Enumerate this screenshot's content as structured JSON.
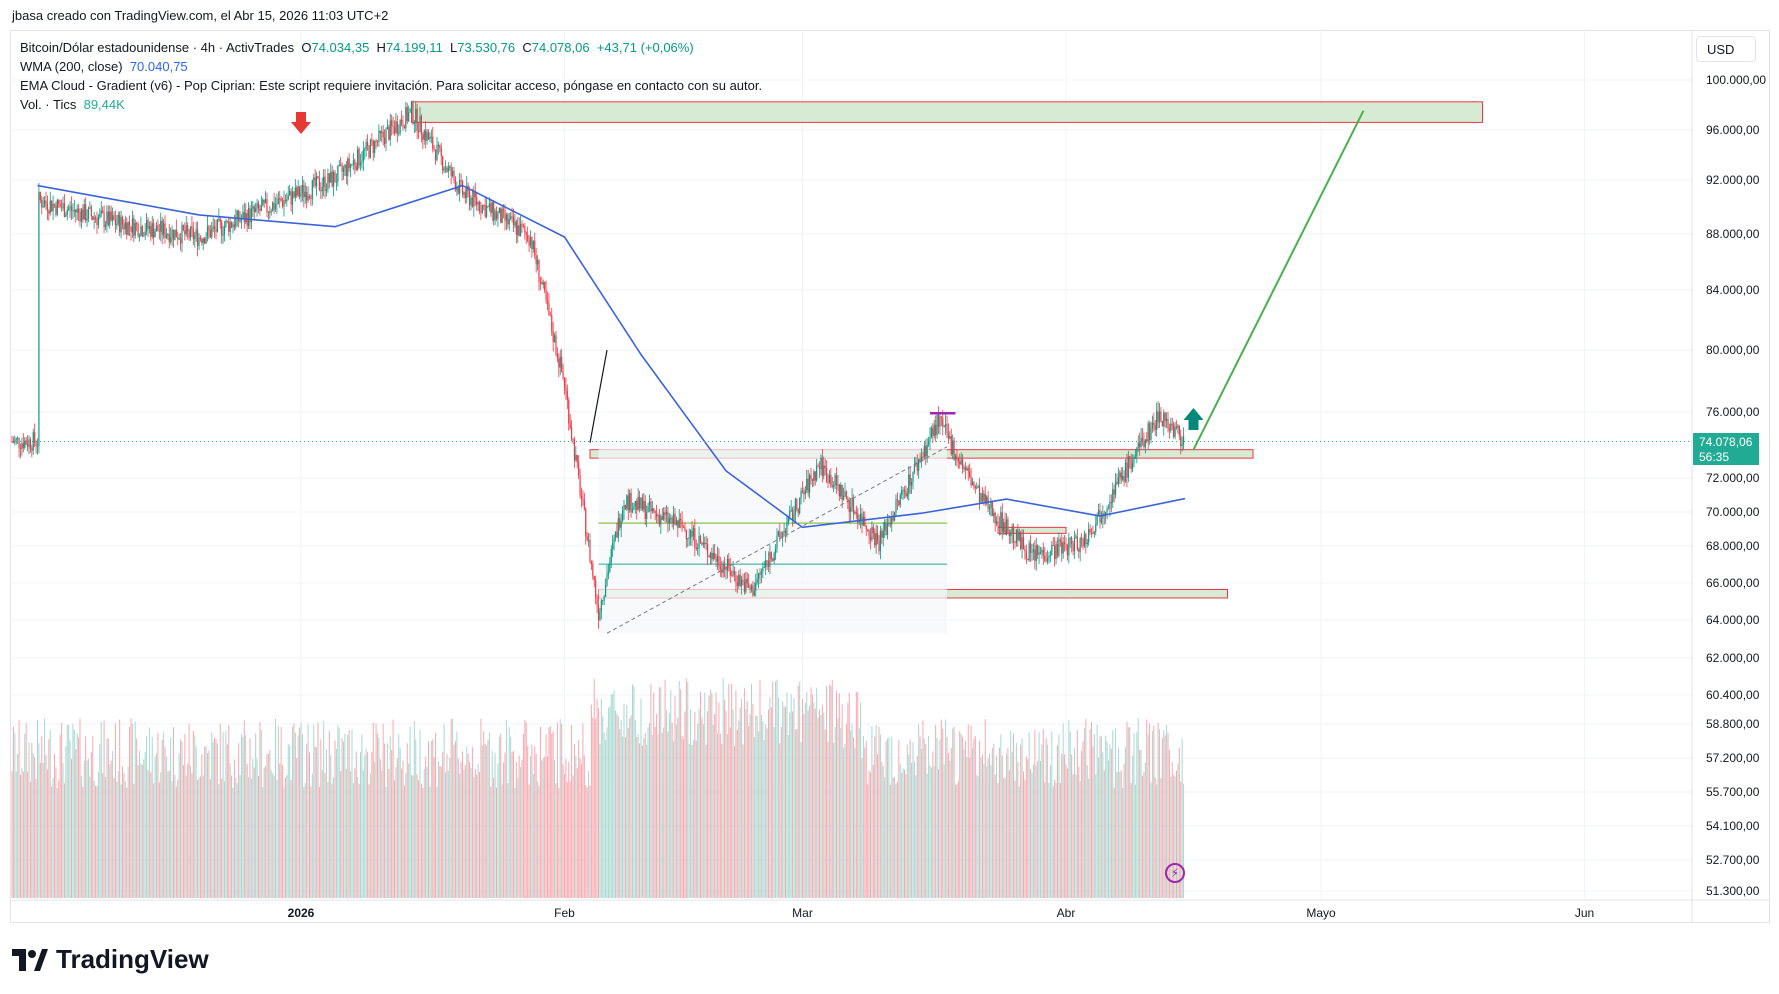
{
  "header": {
    "caption": "jbasa creado con TradingView.com, el Abr 15, 2026 11:03 UTC+2"
  },
  "legend": {
    "symbol": "Bitcoin/Dólar estadounidense · 4h · ActivTrades",
    "open_label": "O",
    "open": "74.034,35",
    "high_label": "H",
    "high": "74.199,11",
    "low_label": "L",
    "low": "73.530,76",
    "close_label": "C",
    "close": "74.078,06",
    "change": "+43,71 (+0,06%)",
    "wma_label": "WMA (200, close)",
    "wma_value": "70.040,75",
    "ema_cloud": "EMA Cloud - Gradient (v6) - Pop Ciprian: Este script requiere invitación. Para solicitar acceso, póngase en contacto con su autor.",
    "vol_label": "Vol. · Tics",
    "vol_value": "89,44K"
  },
  "currency_button": "USD",
  "last_price": {
    "value": "74.078,06",
    "countdown": "56:35"
  },
  "brand": "TradingView",
  "colors": {
    "up": "#089981",
    "down": "#f23645",
    "wma": "#3a63d9",
    "zone_fill": "#d7ead3",
    "zone_border": "#f23645",
    "projection": "#4caf50",
    "accent": "#22ab94"
  },
  "chart_data": {
    "type": "candlestick",
    "symbol": "BTCUSD",
    "timeframe": "4h",
    "y_axis_labels": [
      "100.000,00",
      "96.000,00",
      "92.000,00",
      "88.000,00",
      "84.000,00",
      "80.000,00",
      "76.000,00",
      "72.000,00",
      "70.000,00",
      "68.000,00",
      "66.000,00",
      "64.000,00",
      "62.000,00",
      "60.400,00",
      "58.800,00",
      "57.200,00",
      "55.700,00",
      "54.100,00",
      "52.700,00",
      "51.300,00"
    ],
    "x_axis_labels": [
      "2026",
      "Feb",
      "Mar",
      "Abr",
      "Mayo",
      "Jun"
    ],
    "price_path": [
      {
        "date": "2025-12-01",
        "price": 90500
      },
      {
        "date": "2025-12-10",
        "price": 89000
      },
      {
        "date": "2025-12-20",
        "price": 88000
      },
      {
        "date": "2026-01-05",
        "price": 92000
      },
      {
        "date": "2026-01-14",
        "price": 96500
      },
      {
        "date": "2026-01-20",
        "price": 91000
      },
      {
        "date": "2026-01-28",
        "price": 88000
      },
      {
        "date": "2026-02-01",
        "price": 78000
      },
      {
        "date": "2026-02-05",
        "price": 62000
      },
      {
        "date": "2026-02-08",
        "price": 70000
      },
      {
        "date": "2026-02-15",
        "price": 68000
      },
      {
        "date": "2026-02-23",
        "price": 63500
      },
      {
        "date": "2026-03-03",
        "price": 72500
      },
      {
        "date": "2026-03-10",
        "price": 67000
      },
      {
        "date": "2026-03-17",
        "price": 75500
      },
      {
        "date": "2026-03-22",
        "price": 70000
      },
      {
        "date": "2026-03-28",
        "price": 66000
      },
      {
        "date": "2026-04-03",
        "price": 67000
      },
      {
        "date": "2026-04-08",
        "price": 72000
      },
      {
        "date": "2026-04-12",
        "price": 76000
      },
      {
        "date": "2026-04-15",
        "price": 74078
      }
    ],
    "wma_path": [
      {
        "date": "2025-12-01",
        "value": 91500
      },
      {
        "date": "2025-12-20",
        "value": 89500
      },
      {
        "date": "2026-01-05",
        "value": 88700
      },
      {
        "date": "2026-01-20",
        "value": 91500
      },
      {
        "date": "2026-02-01",
        "value": 88000
      },
      {
        "date": "2026-02-10",
        "value": 80000
      },
      {
        "date": "2026-02-20",
        "value": 72000
      },
      {
        "date": "2026-03-01",
        "value": 68000
      },
      {
        "date": "2026-03-15",
        "value": 69000
      },
      {
        "date": "2026-03-25",
        "value": 70000
      },
      {
        "date": "2026-04-05",
        "value": 68800
      },
      {
        "date": "2026-04-15",
        "value": 70040
      }
    ],
    "zones": [
      {
        "name": "resistance",
        "from": "2026-01-14",
        "to": "2026-05-20",
        "low": 95800,
        "high": 97200
      },
      {
        "name": "breakout",
        "from": "2026-02-04",
        "to": "2026-04-23",
        "low": 72900,
        "high": 73500
      },
      {
        "name": "support",
        "from": "2026-02-05",
        "to": "2026-04-20",
        "low": 63000,
        "high": 63600
      },
      {
        "name": "mini-support",
        "from": "2026-03-24",
        "to": "2026-04-01",
        "low": 67600,
        "high": 68000
      }
    ],
    "projection": {
      "from_date": "2026-04-16",
      "from_price": 73500,
      "to_date": "2026-05-06",
      "to_price": 96600
    },
    "annotations": [
      "down-arrow near 2026-01-01",
      "up-arrow near 2026-04-16"
    ],
    "last_price": 74078.06
  }
}
